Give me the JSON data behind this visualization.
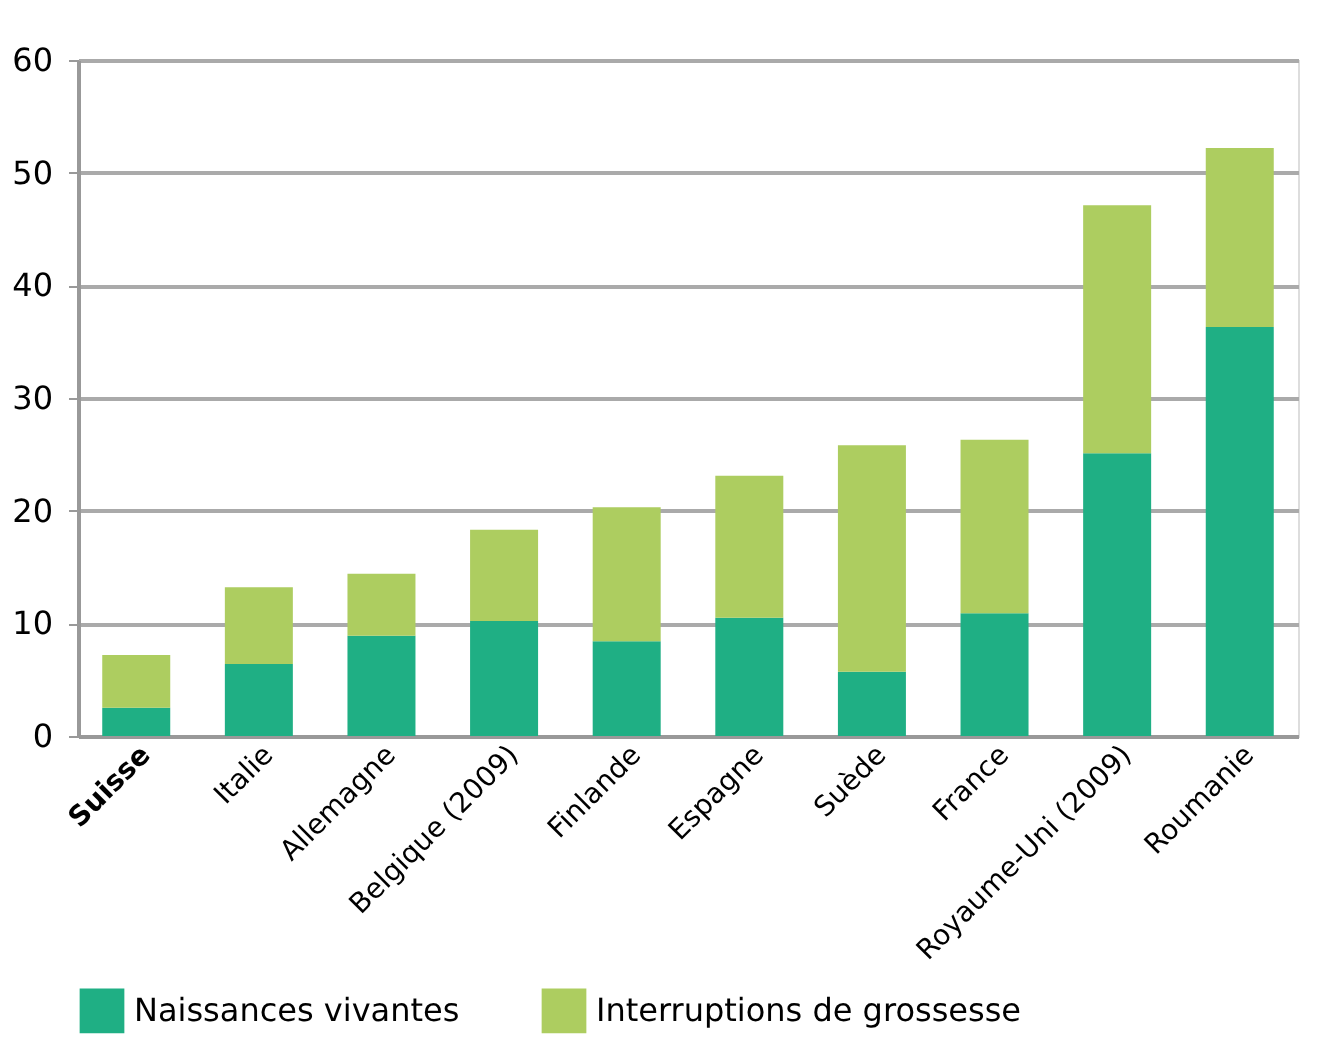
{
  "chart_data": {
    "type": "bar",
    "stacked": true,
    "categories": [
      "Suisse",
      "Italie",
      "Allemagne",
      "Belgique (2009)",
      "Finlande",
      "Espagne",
      "Suède",
      "France",
      "Royaume-Uni (2009)",
      "Roumanie"
    ],
    "series": [
      {
        "name": "Naissances vivantes",
        "color": "#1faf84",
        "values": [
          2.5,
          6.4,
          8.9,
          10.2,
          8.4,
          10.5,
          5.7,
          10.9,
          25.1,
          36.3
        ]
      },
      {
        "name": "Interruptions de grossesse",
        "color": "#adcd60",
        "values": [
          4.7,
          6.8,
          5.5,
          8.1,
          11.9,
          12.6,
          20.1,
          15.4,
          22.0,
          15.9
        ]
      }
    ],
    "ylim": [
      0,
      60
    ],
    "yticks": [
      0,
      10,
      20,
      30,
      40,
      50,
      60
    ],
    "grid": "y",
    "legend": "bottom"
  }
}
